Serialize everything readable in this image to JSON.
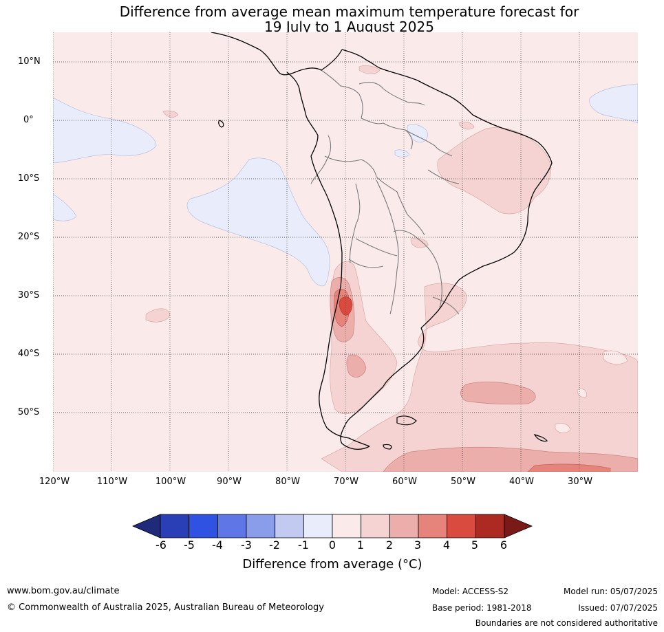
{
  "title_line1": "Difference from average mean maximum temperature forecast for",
  "title_line2": "19 July to 1 August 2025",
  "lat_labels": [
    "10°N",
    "0°",
    "10°S",
    "20°S",
    "30°S",
    "40°S",
    "50°S"
  ],
  "lon_labels": [
    "120°W",
    "110°W",
    "100°W",
    "90°W",
    "80°W",
    "70°W",
    "60°W",
    "50°W",
    "40°W",
    "30°W"
  ],
  "colorbar": {
    "ticks": [
      "-6",
      "-5",
      "-4",
      "-3",
      "-2",
      "-1",
      "0",
      "1",
      "2",
      "3",
      "4",
      "5",
      "6"
    ],
    "colors": [
      "#1f2a7a",
      "#2a3fb5",
      "#3052e3",
      "#5e76e6",
      "#8a9deb",
      "#c3caf2",
      "#e8ecfb",
      "#fbeaea",
      "#f4d3d2",
      "#ebaeaa",
      "#e6837a",
      "#d94b3f",
      "#ac2a22",
      "#7a1a18"
    ],
    "label": "Difference from average (°C)"
  },
  "footer": {
    "website": "www.bom.gov.au/climate",
    "copyright": "© Commonwealth of Australia 2025, Australian Bureau of Meteorology",
    "model": "Model: ACCESS-S2",
    "base_period": "Base period: 1981-2018",
    "model_run": "Model run: 05/07/2025",
    "issued": "Issued: 07/07/2025",
    "disclaimer": "Boundaries are not considered authoritative"
  }
}
